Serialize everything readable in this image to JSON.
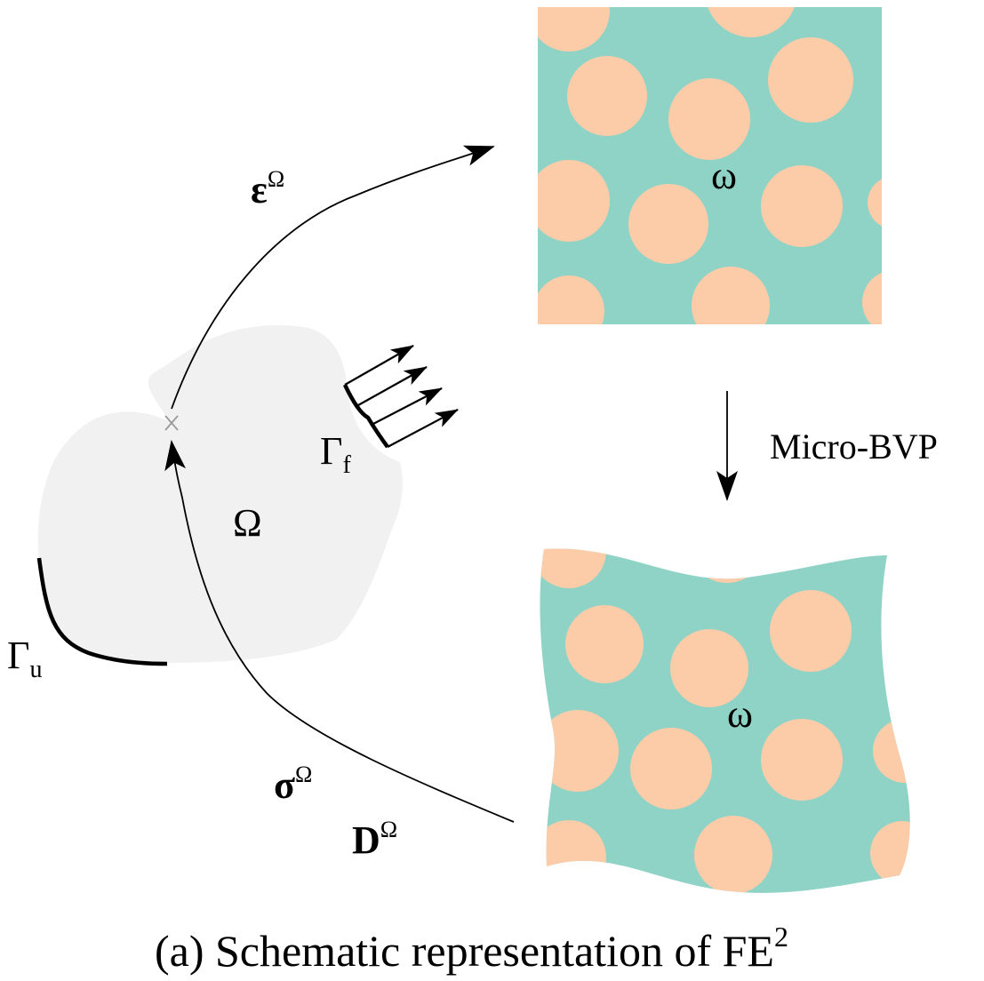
{
  "labels": {
    "macro_domain": "Ω",
    "gamma": "Γ",
    "gamma_u_sub": "u",
    "gamma_f_sub": "f",
    "micro_domain": "ω",
    "strain": "ε",
    "stress": "σ",
    "tangent": "D",
    "superscript_macro": "Ω",
    "micro_bvp": "Micro-BVP"
  },
  "caption": {
    "text": "(a) Schematic representation of FE",
    "superscript": "2"
  },
  "colors": {
    "macro_body": "#f1f1f1",
    "matrix": "#8fd3c6",
    "inclusion": "#fccca8",
    "marker": "#9a9a9a",
    "stroke": "#000000"
  }
}
